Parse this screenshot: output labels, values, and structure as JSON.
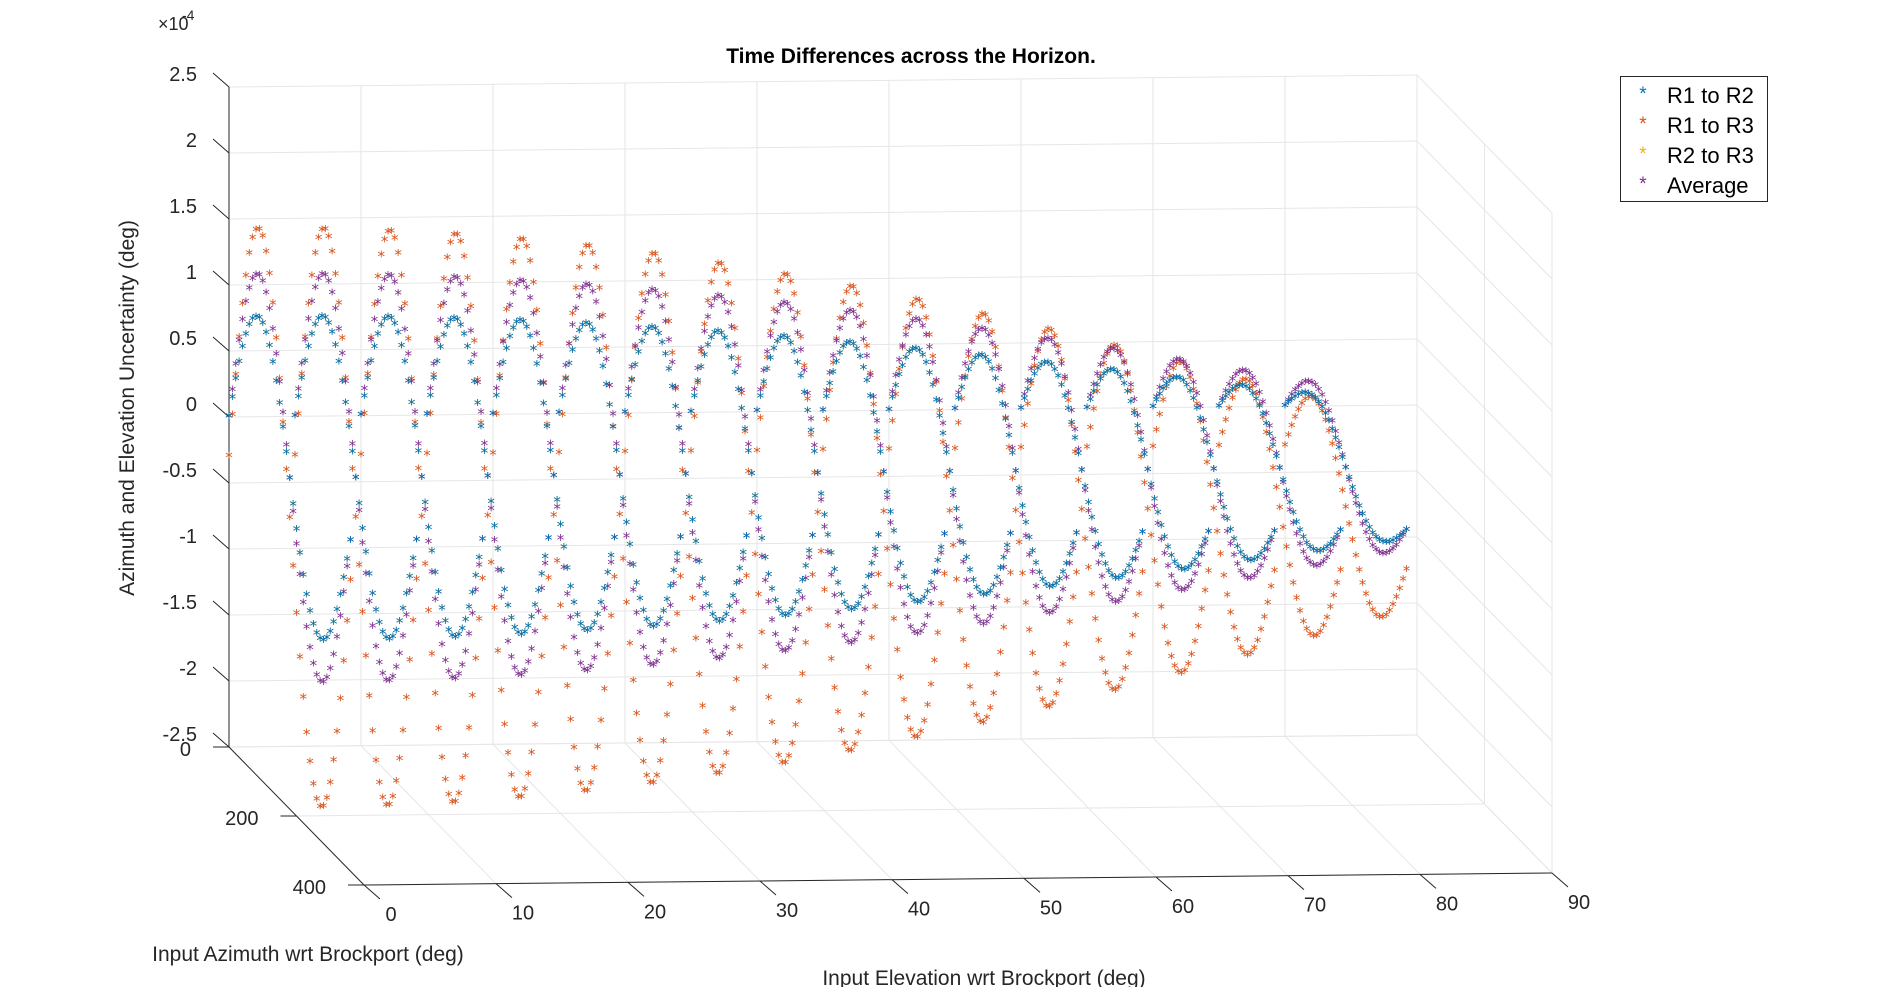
{
  "chart_data": {
    "type": "scatter",
    "title": "Time Differences across the Horizon.",
    "exponent_label": "×10",
    "exponent_power": "-4",
    "xlabel": "Input Elevation wrt Brockport (deg)",
    "ylabel": "Input Azimuth wrt Brockport (deg)",
    "zlabel": "Azimuth and Elevation Uncertainty (deg)",
    "xlim": [
      0,
      90
    ],
    "ylim": [
      0,
      400
    ],
    "zlim": [
      -2.5,
      2.5
    ],
    "x_ticks": [
      "0",
      "10",
      "20",
      "30",
      "40",
      "50",
      "60",
      "70",
      "80",
      "90"
    ],
    "y_ticks": [
      "0",
      "200",
      "400"
    ],
    "z_ticks": [
      "2.5",
      "2",
      "1.5",
      "1",
      "0.5",
      "0",
      "-0.5",
      "-1",
      "-1.5",
      "-2",
      "-2.5"
    ],
    "grid": true,
    "legend_position": "top-right",
    "elevations": [
      0,
      5,
      10,
      15,
      20,
      25,
      30,
      35,
      40,
      45,
      50,
      55,
      60,
      65,
      70,
      75,
      80
    ],
    "azimuth_range": [
      0,
      360
    ],
    "series": [
      {
        "name": "R1 to R2",
        "color": "#0072BD",
        "amplitude": 1.58,
        "phase_deg": 0
      },
      {
        "name": "R1 to R3",
        "color": "#D95319",
        "amplitude": 3.15,
        "phase_deg": 0
      },
      {
        "name": "R2 to R3",
        "color": "#EDB120",
        "amplitude": 1.58,
        "phase_deg": 0
      },
      {
        "name": "Average",
        "color": "#7E2F8E",
        "amplitude": 2.1,
        "phase_deg": 0
      }
    ]
  }
}
